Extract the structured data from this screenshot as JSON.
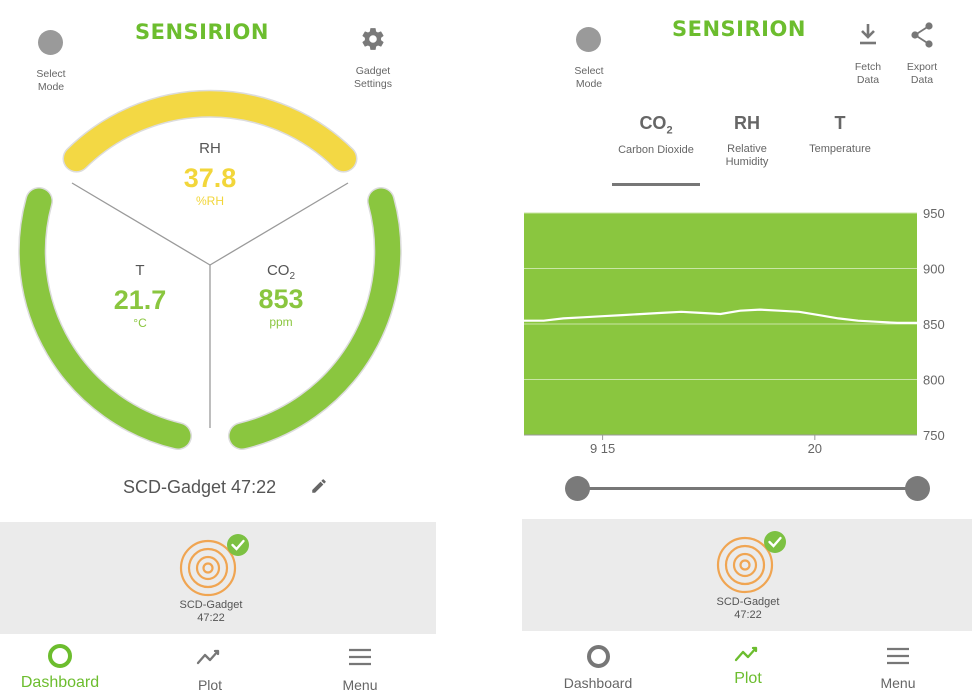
{
  "dashboard": {
    "header": {
      "logo": "SENSIRION",
      "select_mode": [
        "Select",
        "Mode"
      ],
      "gadget_settings": [
        "Gadget",
        "Settings"
      ]
    },
    "gauges": {
      "rh": {
        "title": "RH",
        "value": "37.8",
        "unit": "%RH",
        "color": "#f3d844"
      },
      "t": {
        "title": "T",
        "value": "21.7",
        "unit": "°C",
        "color": "#8ac63f"
      },
      "co2": {
        "title": "CO",
        "title_sub": "2",
        "value": "853",
        "unit": "ppm",
        "color": "#8ac63f"
      }
    },
    "device_name": "SCD-Gadget 47:22",
    "device_card": {
      "line1": "SCD-Gadget",
      "line2": "47:22"
    },
    "nav": {
      "dashboard": "Dashboard",
      "plot": "Plot",
      "menu": "Menu",
      "active": "dashboard"
    }
  },
  "plot": {
    "header": {
      "logo": "SENSIRION",
      "select_mode": [
        "Select",
        "Mode"
      ],
      "fetch_data": [
        "Fetch",
        "Data"
      ],
      "export_data": [
        "Export",
        "Data"
      ]
    },
    "tabs": [
      {
        "symbol": "CO",
        "symbol_sub": "2",
        "label": [
          "Carbon Dioxide"
        ],
        "active": true
      },
      {
        "symbol": "RH",
        "symbol_sub": "",
        "label": [
          "Relative",
          "Humidity"
        ],
        "active": false
      },
      {
        "symbol": "T",
        "symbol_sub": "",
        "label": [
          "Temperature"
        ],
        "active": false
      }
    ],
    "device_card": {
      "line1": "SCD-Gadget",
      "line2": "47:22"
    },
    "nav": {
      "dashboard": "Dashboard",
      "plot": "Plot",
      "menu": "Menu",
      "active": "plot"
    }
  },
  "chart_data": {
    "type": "line",
    "title": "",
    "xlabel": "",
    "ylabel": "",
    "ylim": [
      750,
      950
    ],
    "yticks": [
      950,
      900,
      850,
      800,
      750
    ],
    "xticks": [
      {
        "label": "9 15",
        "frac": 0.2
      },
      {
        "label": "20",
        "frac": 0.74
      }
    ],
    "x_frac": [
      0,
      0.05,
      0.1,
      0.15,
      0.2,
      0.25,
      0.3,
      0.35,
      0.4,
      0.45,
      0.5,
      0.55,
      0.6,
      0.65,
      0.7,
      0.75,
      0.8,
      0.85,
      0.9,
      0.95,
      1
    ],
    "values": [
      853,
      853,
      855,
      856,
      857,
      858,
      859,
      860,
      861,
      860,
      859,
      862,
      863,
      862,
      861,
      858,
      855,
      853,
      852,
      851,
      851
    ],
    "background_color": "#8ac63f",
    "line_color": "#ffffff",
    "grid": true
  }
}
